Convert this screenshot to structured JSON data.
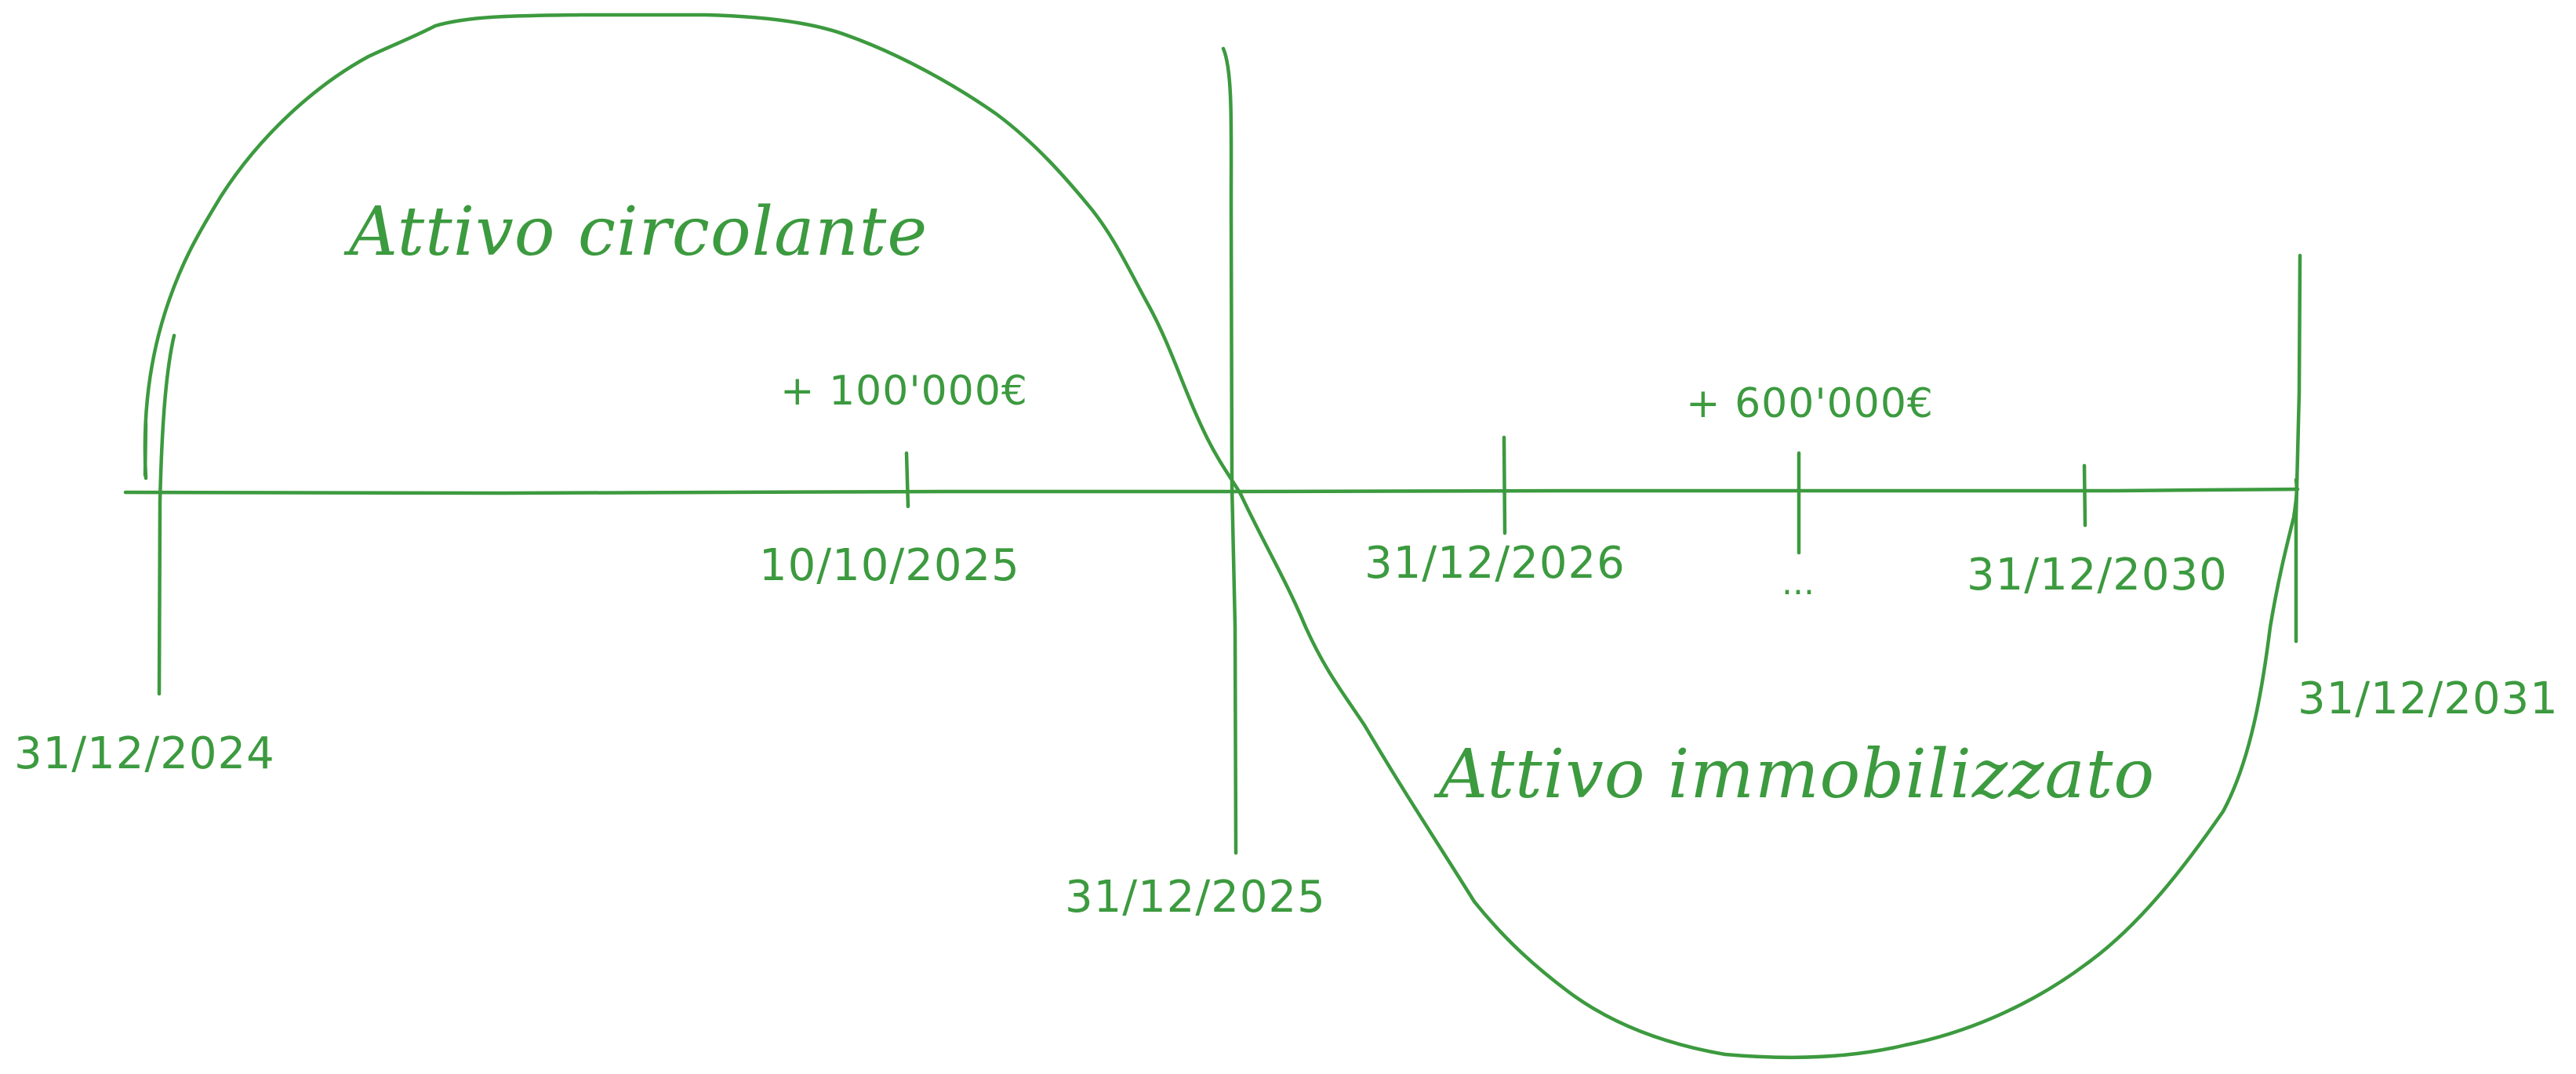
{
  "colors": {
    "ink": "#3c9a3f",
    "background": "#ffffff"
  },
  "labels": {
    "current_assets": "Attivo circolante",
    "fixed_assets": "Attivo immobilizzato",
    "amount_first": "+ 100'000€",
    "amount_second": "+ 600'000€",
    "ellipsis": "..."
  },
  "dates": {
    "start": "31/12/2024",
    "mid_2025": "10/10/2025",
    "end_2025": "31/12/2025",
    "end_2026": "31/12/2026",
    "end_2030": "31/12/2030",
    "end_2031": "31/12/2031"
  }
}
